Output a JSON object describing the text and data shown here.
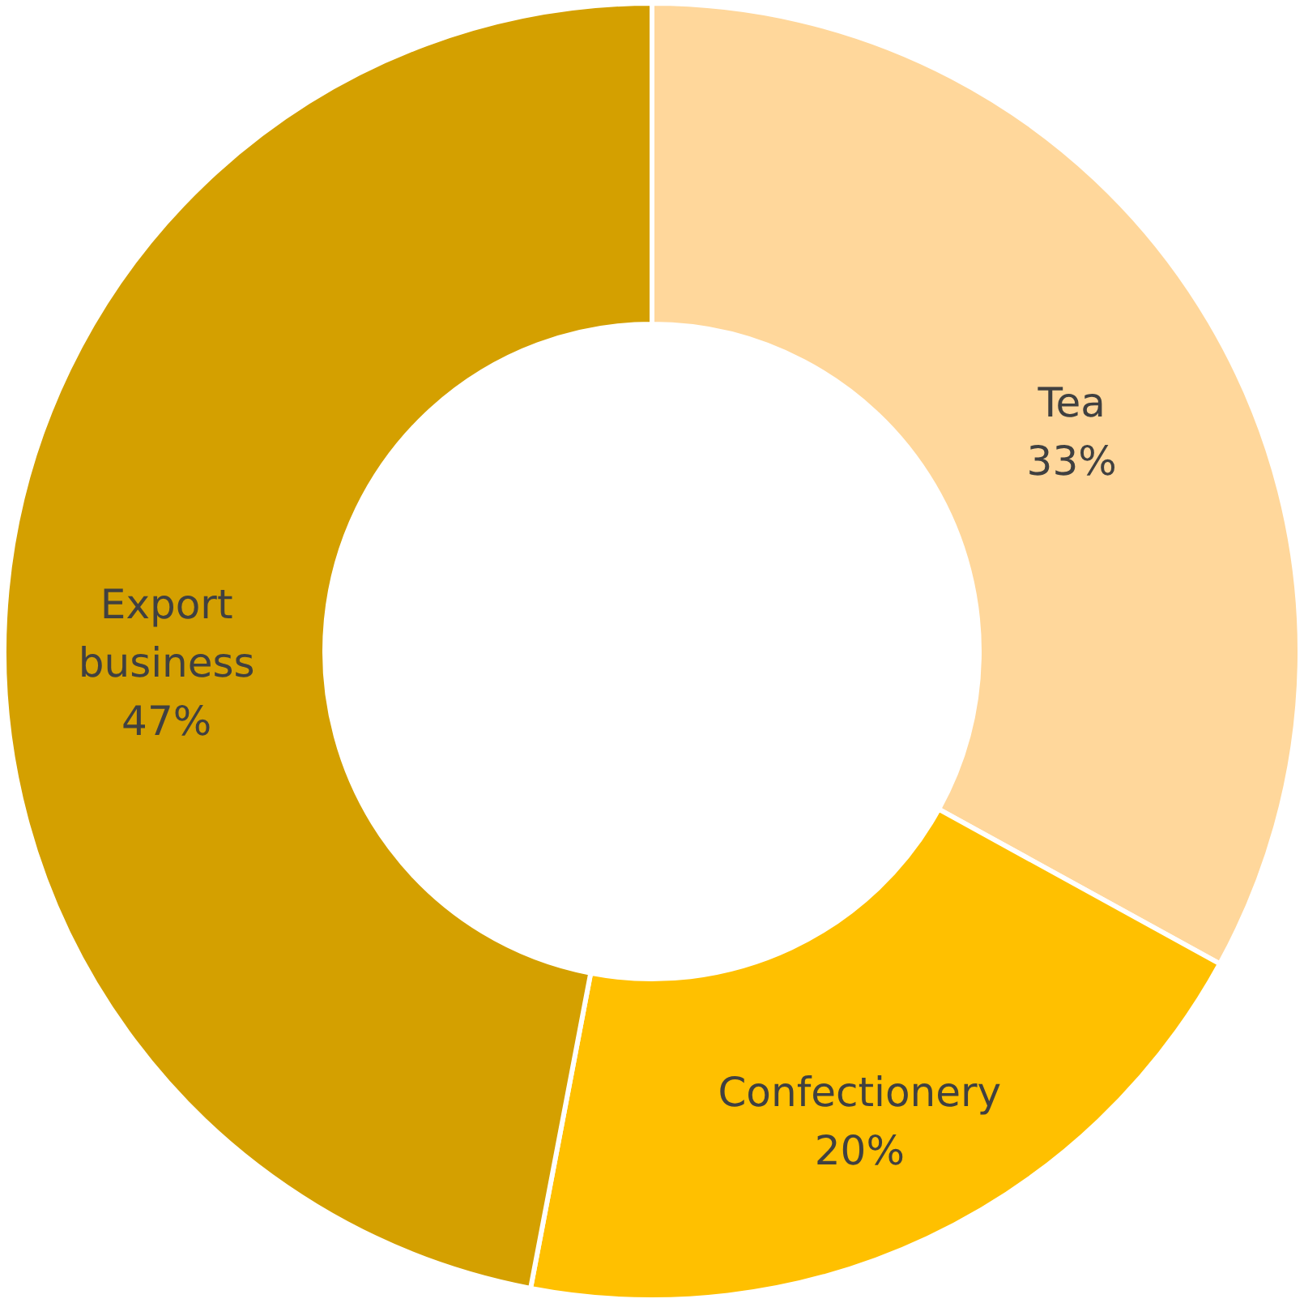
{
  "chart_data": {
    "type": "donut",
    "categories": [
      "Tea",
      "Confectionery",
      "Export business"
    ],
    "values": [
      33,
      20,
      47
    ],
    "value_labels": [
      "33%",
      "20%",
      "47%"
    ],
    "colors": [
      "#ffd79b",
      "#ffc000",
      "#d4a000"
    ]
  }
}
